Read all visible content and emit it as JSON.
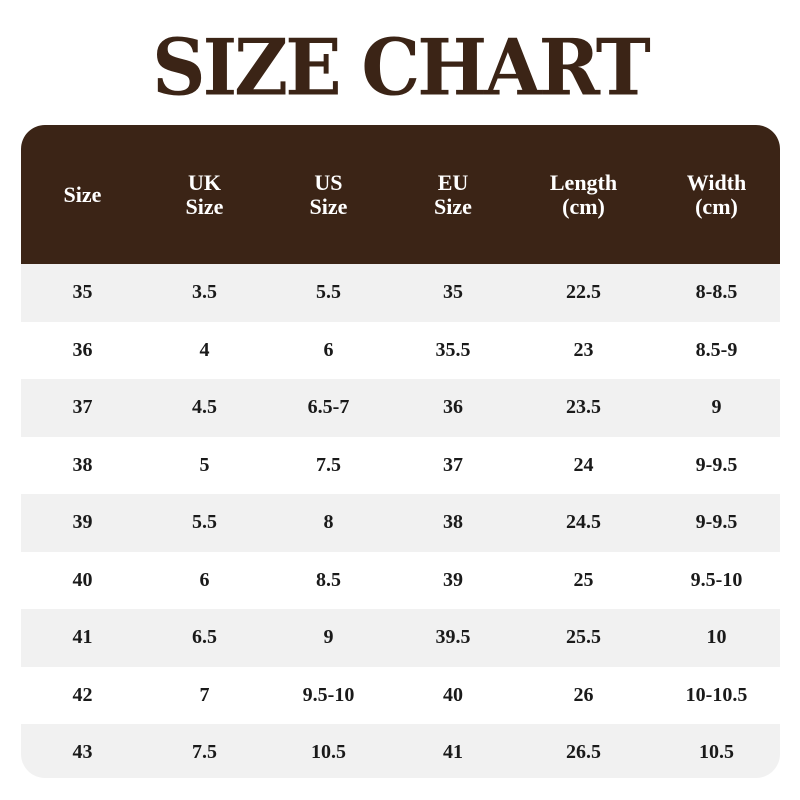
{
  "title": "SIZE CHART",
  "colors": {
    "header_bg": "#3b2416",
    "title": "#3b2416",
    "row_alt": "#f1f1f1"
  },
  "table": {
    "headers": [
      "Size",
      "UK\nSize",
      "US\nSize",
      "EU\nSize",
      "Length\n(cm)",
      "Width\n(cm)"
    ],
    "rows": [
      [
        "35",
        "3.5",
        "5.5",
        "35",
        "22.5",
        "8-8.5"
      ],
      [
        "36",
        "4",
        "6",
        "35.5",
        "23",
        "8.5-9"
      ],
      [
        "37",
        "4.5",
        "6.5-7",
        "36",
        "23.5",
        "9"
      ],
      [
        "38",
        "5",
        "7.5",
        "37",
        "24",
        "9-9.5"
      ],
      [
        "39",
        "5.5",
        "8",
        "38",
        "24.5",
        "9-9.5"
      ],
      [
        "40",
        "6",
        "8.5",
        "39",
        "25",
        "9.5-10"
      ],
      [
        "41",
        "6.5",
        "9",
        "39.5",
        "25.5",
        "10"
      ],
      [
        "42",
        "7",
        "9.5-10",
        "40",
        "26",
        "10-10.5"
      ],
      [
        "43",
        "7.5",
        "10.5",
        "41",
        "26.5",
        "10.5"
      ]
    ]
  }
}
